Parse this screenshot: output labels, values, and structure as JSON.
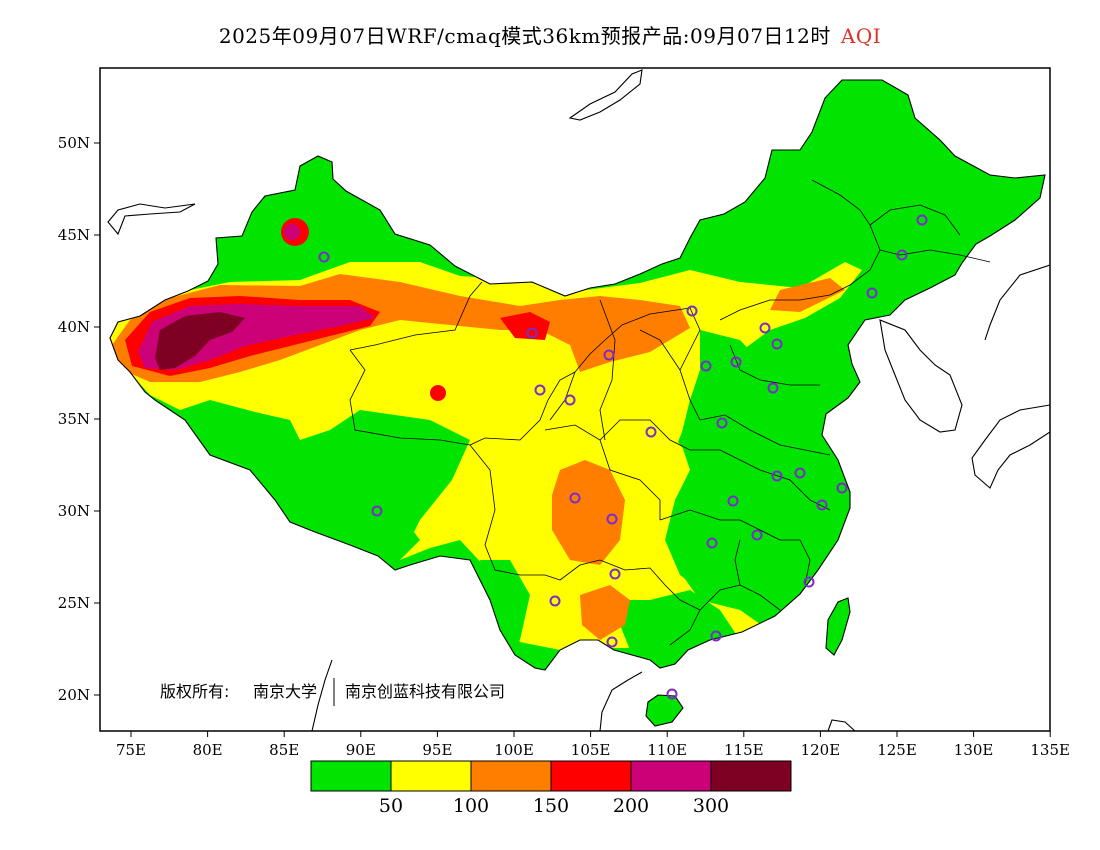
{
  "title": {
    "main": "2025年09月07日WRF/cmaq模式36km预报产品:09月07日12时",
    "variable": "AQI"
  },
  "axes": {
    "lon_ticks": [
      "75E",
      "80E",
      "85E",
      "90E",
      "95E",
      "100E",
      "105E",
      "110E",
      "115E",
      "120E",
      "125E",
      "130E",
      "135E"
    ],
    "lat_ticks": [
      "50N",
      "45N",
      "40N",
      "35N",
      "30N",
      "25N",
      "20N"
    ]
  },
  "copyright": {
    "owner_label": "版权所有:",
    "org1": "南京大学",
    "org2": "南京创蓝科技有限公司"
  },
  "legend": {
    "colors": [
      "#00e400",
      "#ffff00",
      "#ff7e00",
      "#ff0000",
      "#cc0077",
      "#7e0023"
    ],
    "thresholds": [
      "50",
      "100",
      "150",
      "200",
      "300"
    ]
  },
  "colors": {
    "good": "#00e400",
    "moderate": "#ffff00",
    "usg": "#ff7e00",
    "unhealthy": "#ff0000",
    "very_unhealthy": "#cc0077",
    "hazardous": "#7e0023",
    "station_ring": "#7b2cc9"
  }
}
